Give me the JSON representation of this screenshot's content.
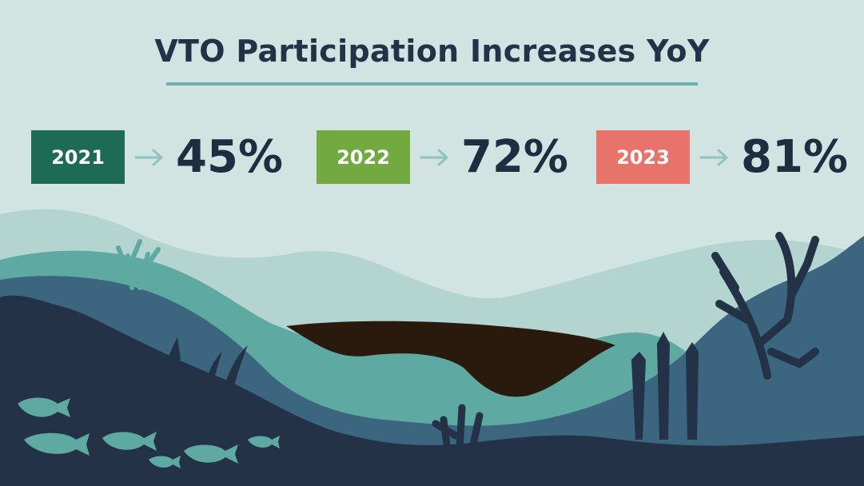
{
  "title": "VTO Participation Increases YoY",
  "colors": {
    "background": "#d2e4e2",
    "title_rule": "#6ab3ad",
    "text": "#1f2d40",
    "arrow": "#8cc5c0"
  },
  "chart_data": {
    "type": "table",
    "title": "VTO Participation Increases YoY",
    "categories": [
      "2021",
      "2022",
      "2023"
    ],
    "values": [
      45,
      72,
      81
    ],
    "value_labels": [
      "45%",
      "72%",
      "81%"
    ],
    "category_colors": [
      "#1c6b52",
      "#72a941",
      "#e8736b"
    ]
  }
}
